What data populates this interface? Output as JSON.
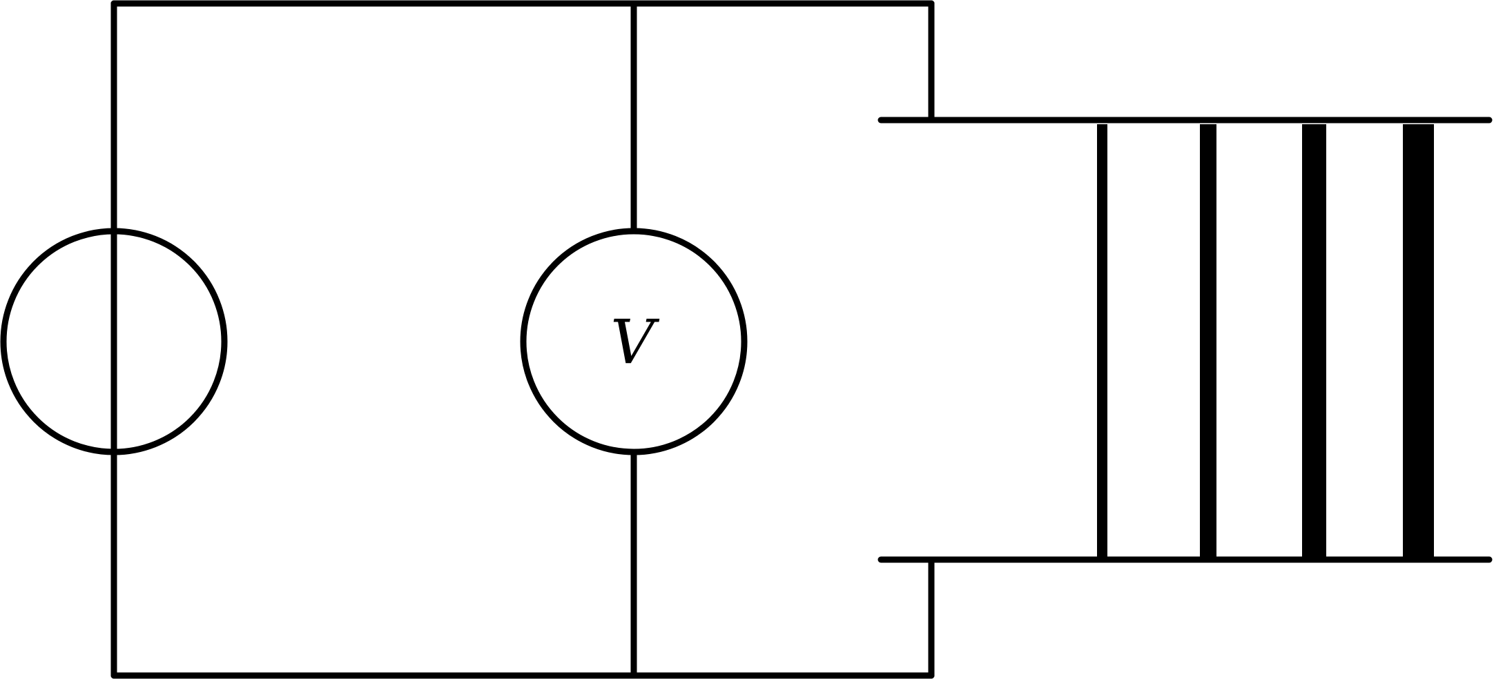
{
  "diagram": {
    "components": [
      {
        "kind": "source",
        "symbol": ""
      },
      {
        "kind": "voltmeter",
        "symbol": "V"
      }
    ],
    "plates": {
      "count": 4,
      "relative_thickness": [
        1,
        2,
        3,
        4
      ]
    },
    "colors": {
      "stroke": "#000000",
      "background": "#ffffff"
    }
  }
}
